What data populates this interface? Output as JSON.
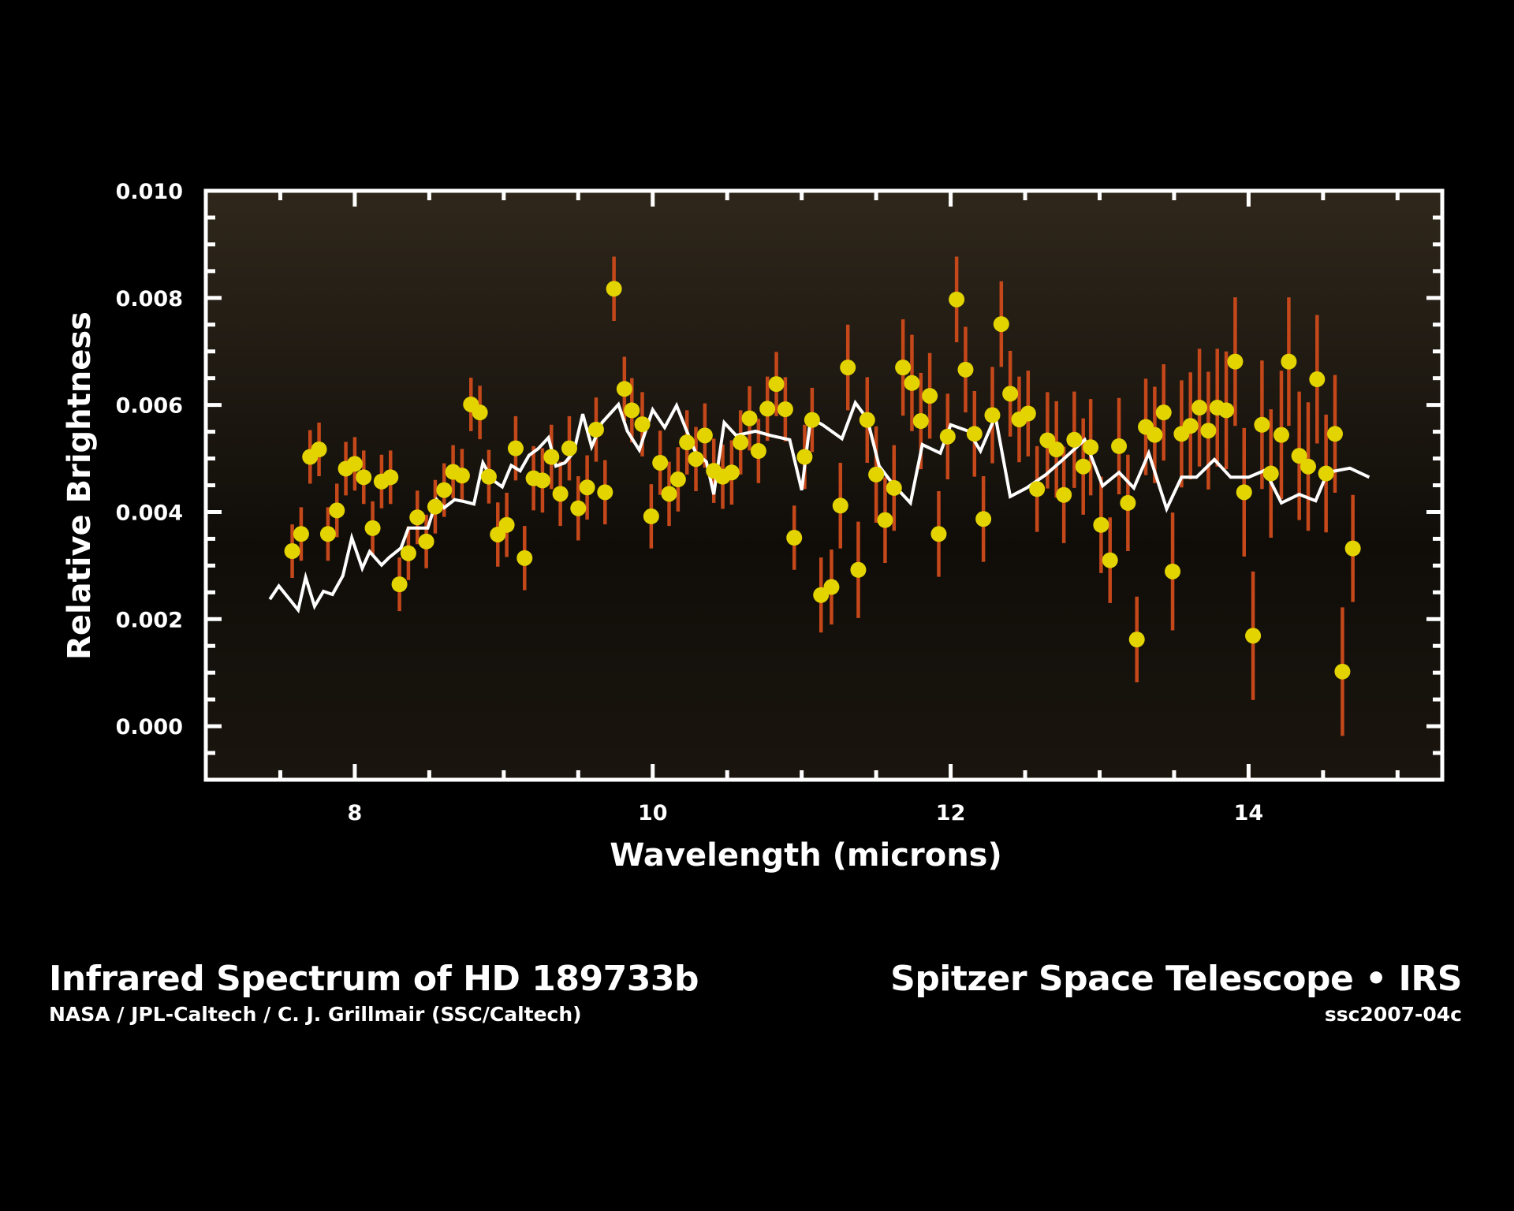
{
  "captions": {
    "title": "Infrared Spectrum of HD 189733b",
    "credit": "NASA / JPL-Caltech / C. J. Grillmair (SSC/Caltech)",
    "mission": "Spitzer Space Telescope • IRS",
    "image_id": "ssc2007-04c"
  },
  "chart_data": {
    "type": "scatter",
    "title": "Infrared Spectrum of HD 189733b",
    "xlabel": "Wavelength (microns)",
    "ylabel": "Relative Brightness",
    "xlim": [
      7.0,
      15.3
    ],
    "ylim": [
      -0.001,
      0.01
    ],
    "xticks": [
      8,
      10,
      12,
      14
    ],
    "xtick_labels": [
      "8",
      "10",
      "12",
      "14"
    ],
    "x_minor_step": 0.5,
    "yticks": [
      0.0,
      0.002,
      0.004,
      0.006,
      0.008,
      0.01
    ],
    "ytick_labels": [
      "0.000",
      "0.002",
      "0.004",
      "0.006",
      "0.008",
      "0.010"
    ],
    "y_minor_step": 0.0005,
    "grid": false,
    "colors": {
      "points": "#e3d400",
      "error_bars": "#c4481a",
      "model_line": "#ffffff",
      "frame": "#ffffff",
      "plot_bg_top": "#2f271b",
      "plot_bg_bottom": "#1a150e"
    },
    "series": [
      {
        "kind": "points-with-error-bars",
        "x": [
          7.58,
          7.64,
          7.7,
          7.76,
          7.82,
          7.88,
          7.94,
          8.0,
          8.06,
          8.12,
          8.18,
          8.24,
          8.3,
          8.36,
          8.42,
          8.48,
          8.54,
          8.6,
          8.66,
          8.72,
          8.78,
          8.84,
          8.9,
          8.96,
          9.02,
          9.08,
          9.14,
          9.2,
          9.26,
          9.32,
          9.38,
          9.44,
          9.5,
          9.56,
          9.62,
          9.68,
          9.74,
          9.81,
          9.86,
          9.93,
          9.99,
          10.05,
          10.11,
          10.17,
          10.23,
          10.29,
          10.35,
          10.41,
          10.47,
          10.53,
          10.59,
          10.65,
          10.71,
          10.77,
          10.83,
          10.89,
          10.95,
          11.02,
          11.07,
          11.13,
          11.2,
          11.26,
          11.31,
          11.38,
          11.44,
          11.5,
          11.56,
          11.62,
          11.68,
          11.74,
          11.8,
          11.86,
          11.92,
          11.98,
          12.04,
          12.1,
          12.16,
          12.22,
          12.28,
          12.34,
          12.4,
          12.46,
          12.52,
          12.58,
          12.65,
          12.71,
          12.76,
          12.83,
          12.89,
          12.94,
          13.01,
          13.07,
          13.13,
          13.19,
          13.25,
          13.31,
          13.37,
          13.43,
          13.49,
          13.55,
          13.61,
          13.67,
          13.73,
          13.79,
          13.85,
          13.91,
          13.97,
          14.03,
          14.09,
          14.15,
          14.22,
          14.27,
          14.34,
          14.4,
          14.46,
          14.52,
          14.58,
          14.63,
          14.7
        ],
        "y": [
          0.00327,
          0.00359,
          0.00503,
          0.00517,
          0.00359,
          0.00403,
          0.00481,
          0.0049,
          0.00465,
          0.0037,
          0.00457,
          0.00465,
          0.00265,
          0.00323,
          0.0039,
          0.00345,
          0.0041,
          0.00441,
          0.00475,
          0.00468,
          0.00601,
          0.00586,
          0.00466,
          0.00358,
          0.00376,
          0.00519,
          0.00314,
          0.00463,
          0.00459,
          0.00503,
          0.00434,
          0.00519,
          0.00407,
          0.00446,
          0.00554,
          0.00437,
          0.00817,
          0.0063,
          0.0059,
          0.00564,
          0.00392,
          0.00492,
          0.00434,
          0.00461,
          0.0053,
          0.00499,
          0.00543,
          0.00477,
          0.00466,
          0.00474,
          0.0053,
          0.00575,
          0.00514,
          0.00593,
          0.00639,
          0.00592,
          0.00352,
          0.00503,
          0.00572,
          0.00245,
          0.0026,
          0.00412,
          0.0067,
          0.00292,
          0.00572,
          0.0047,
          0.00385,
          0.00445,
          0.0067,
          0.00641,
          0.0057,
          0.00617,
          0.00359,
          0.00541,
          0.00797,
          0.00666,
          0.00546,
          0.00387,
          0.00581,
          0.00751,
          0.00621,
          0.00573,
          0.00584,
          0.00443,
          0.00534,
          0.00517,
          0.00432,
          0.00535,
          0.00485,
          0.00521,
          0.00376,
          0.0031,
          0.00523,
          0.00417,
          0.00162,
          0.00559,
          0.00544,
          0.00586,
          0.00289,
          0.00546,
          0.00561,
          0.00595,
          0.00552,
          0.00595,
          0.0059,
          0.00681,
          0.00437,
          0.00169,
          0.00563,
          0.00472,
          0.00544,
          0.00681,
          0.00505,
          0.00485,
          0.00648,
          0.00472,
          0.00546,
          0.00102,
          0.00332
        ],
        "yerr": [
          0.0005,
          0.0005,
          0.0005,
          0.0005,
          0.0005,
          0.0005,
          0.0005,
          0.0005,
          0.0005,
          0.0005,
          0.0005,
          0.0005,
          0.0005,
          0.0005,
          0.0005,
          0.0005,
          0.0005,
          0.0005,
          0.0005,
          0.0005,
          0.0005,
          0.0005,
          0.0005,
          0.0006,
          0.0006,
          0.0006,
          0.0006,
          0.0006,
          0.0006,
          0.0006,
          0.0006,
          0.0006,
          0.0006,
          0.0006,
          0.0006,
          0.0006,
          0.0006,
          0.0006,
          0.0006,
          0.0006,
          0.0006,
          0.0006,
          0.0006,
          0.0006,
          0.0006,
          0.0006,
          0.0006,
          0.0006,
          0.0006,
          0.0006,
          0.0006,
          0.0006,
          0.0006,
          0.0006,
          0.0006,
          0.0006,
          0.0006,
          0.0006,
          0.0006,
          0.0007,
          0.0007,
          0.0008,
          0.0008,
          0.0009,
          0.0008,
          0.0009,
          0.0008,
          0.0008,
          0.0009,
          0.0009,
          0.0009,
          0.0008,
          0.0008,
          0.0008,
          0.0008,
          0.0008,
          0.0008,
          0.0008,
          0.0009,
          0.0008,
          0.0008,
          0.0008,
          0.0008,
          0.0008,
          0.0009,
          0.0009,
          0.0009,
          0.0009,
          0.0009,
          0.0009,
          0.0009,
          0.0008,
          0.0009,
          0.0009,
          0.0008,
          0.0009,
          0.0009,
          0.0009,
          0.0011,
          0.001,
          0.001,
          0.0011,
          0.0011,
          0.0011,
          0.0011,
          0.0012,
          0.0012,
          0.0012,
          0.0012,
          0.0012,
          0.0012,
          0.0012,
          0.0012,
          0.0012,
          0.0012,
          0.0011,
          0.0011,
          0.0012,
          0.001
        ]
      },
      {
        "kind": "model-line",
        "x": [
          7.43,
          7.49,
          7.62,
          7.67,
          7.73,
          7.79,
          7.85,
          7.92,
          7.98,
          8.05,
          8.1,
          8.18,
          8.23,
          8.31,
          8.36,
          8.42,
          8.49,
          8.55,
          8.6,
          8.67,
          8.73,
          8.8,
          8.86,
          8.92,
          8.99,
          9.05,
          9.11,
          9.17,
          9.23,
          9.3,
          9.35,
          9.41,
          9.47,
          9.53,
          9.59,
          9.66,
          9.77,
          9.83,
          9.91,
          10.0,
          10.08,
          10.16,
          10.22,
          10.29,
          10.36,
          10.41,
          10.48,
          10.56,
          10.69,
          10.79,
          10.92,
          11.0,
          11.06,
          11.14,
          11.27,
          11.36,
          11.44,
          11.52,
          11.61,
          11.73,
          11.81,
          11.93,
          12.0,
          12.12,
          12.2,
          12.3,
          12.4,
          12.51,
          12.64,
          12.77,
          12.9,
          13.02,
          13.13,
          13.23,
          13.33,
          13.45,
          13.55,
          13.65,
          13.77,
          13.88,
          14.0,
          14.11,
          14.22,
          14.34,
          14.45,
          14.53,
          14.68,
          14.81
        ],
        "y": [
          0.00237,
          0.00262,
          0.00217,
          0.00278,
          0.00224,
          0.00252,
          0.00246,
          0.00281,
          0.00352,
          0.00295,
          0.00326,
          0.00301,
          0.00315,
          0.00333,
          0.0037,
          0.0037,
          0.0037,
          0.00423,
          0.00408,
          0.00423,
          0.0042,
          0.00415,
          0.00492,
          0.00461,
          0.00447,
          0.00487,
          0.00477,
          0.00506,
          0.00518,
          0.00539,
          0.00486,
          0.00492,
          0.00512,
          0.00583,
          0.00522,
          0.00567,
          0.00601,
          0.00551,
          0.00516,
          0.00591,
          0.00558,
          0.00599,
          0.00557,
          0.0051,
          0.00494,
          0.00433,
          0.00567,
          0.00543,
          0.00551,
          0.00543,
          0.00535,
          0.00441,
          0.00575,
          0.00563,
          0.00537,
          0.00604,
          0.00574,
          0.00486,
          0.00453,
          0.00417,
          0.00526,
          0.0051,
          0.00563,
          0.00551,
          0.00514,
          0.00579,
          0.00429,
          0.00445,
          0.0047,
          0.00502,
          0.00535,
          0.00449,
          0.00474,
          0.00445,
          0.0051,
          0.00406,
          0.00465,
          0.00465,
          0.00498,
          0.00465,
          0.00465,
          0.00478,
          0.00417,
          0.00433,
          0.00421,
          0.00474,
          0.00482,
          0.00465
        ]
      }
    ]
  }
}
